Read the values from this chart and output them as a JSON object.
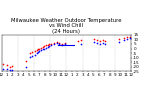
{
  "title": "Milwaukee Weather Outdoor Temperature\nvs Wind Chill\n(24 Hours)",
  "title_fontsize": 3.8,
  "background_color": "#ffffff",
  "grid_color": "#aaaaaa",
  "ylim": [
    -25,
    15
  ],
  "xlim": [
    0,
    24
  ],
  "yticks": [
    15,
    10,
    5,
    0,
    -5,
    -10,
    -15,
    -20,
    -25
  ],
  "ytick_labels": [
    "15",
    "10",
    "5",
    "0",
    "-5",
    "-10",
    "-15",
    "-20",
    "-25"
  ],
  "ylabel_fontsize": 3.0,
  "xlabel_fontsize": 3.0,
  "red_x": [
    0.3,
    1.0,
    1.5,
    2.0,
    4.5,
    5.2,
    5.7,
    6.2,
    6.5,
    6.8,
    7.0,
    7.3,
    7.6,
    7.9,
    8.2,
    8.5,
    8.8,
    9.2,
    9.7,
    10.2,
    10.7,
    11.2,
    11.7,
    14.2,
    14.7,
    17.2,
    17.7,
    18.2,
    18.7,
    19.2,
    21.7,
    22.7,
    23.2,
    23.7
  ],
  "red_y": [
    -17,
    -18,
    -20,
    -19,
    -14,
    -5,
    -4,
    -3,
    -2,
    -1,
    0,
    1,
    2,
    3,
    4,
    4,
    5,
    5,
    6,
    7,
    6,
    5,
    6,
    8,
    9,
    10,
    9,
    8,
    9,
    8,
    10,
    12,
    13,
    13
  ],
  "blue_x": [
    0.3,
    1.0,
    1.5,
    2.0,
    4.5,
    5.2,
    5.7,
    6.2,
    6.5,
    6.8,
    7.0,
    7.3,
    7.6,
    7.9,
    8.2,
    8.5,
    8.8,
    9.2,
    9.7,
    10.2,
    10.7,
    11.2,
    11.7,
    14.7,
    17.2,
    17.7,
    18.2,
    18.7,
    19.2,
    21.7,
    22.7,
    23.2,
    23.7
  ],
  "blue_y": [
    -22,
    -22,
    -24,
    -23,
    -20,
    -9,
    -8,
    -7,
    -5,
    -4,
    -3,
    -2,
    -1,
    0,
    1,
    2,
    3,
    4,
    5,
    6,
    5,
    4,
    5,
    5,
    7,
    6,
    5,
    6,
    5,
    7,
    9,
    10,
    11
  ],
  "blue_line_x": [
    10.5,
    13.5
  ],
  "blue_line_y": [
    4,
    4
  ],
  "vgrid_x": [
    0,
    3,
    6,
    9,
    12,
    15,
    18,
    21,
    24
  ],
  "xtick_positions": [
    0,
    1,
    2,
    3,
    4,
    5,
    6,
    7,
    8,
    9,
    10,
    11,
    12,
    13,
    14,
    15,
    16,
    17,
    18,
    19,
    20,
    21,
    22,
    23,
    24
  ],
  "xtick_labels": [
    "12",
    "1",
    "2",
    "3",
    "4",
    "5",
    "6",
    "7",
    "8",
    "9",
    "10",
    "11",
    "12",
    "1",
    "2",
    "3",
    "4",
    "5",
    "6",
    "7",
    "8",
    "9",
    "10",
    "11",
    "12"
  ],
  "dot_size": 1.5,
  "red_color": "#ff0000",
  "blue_color": "#0000ff"
}
